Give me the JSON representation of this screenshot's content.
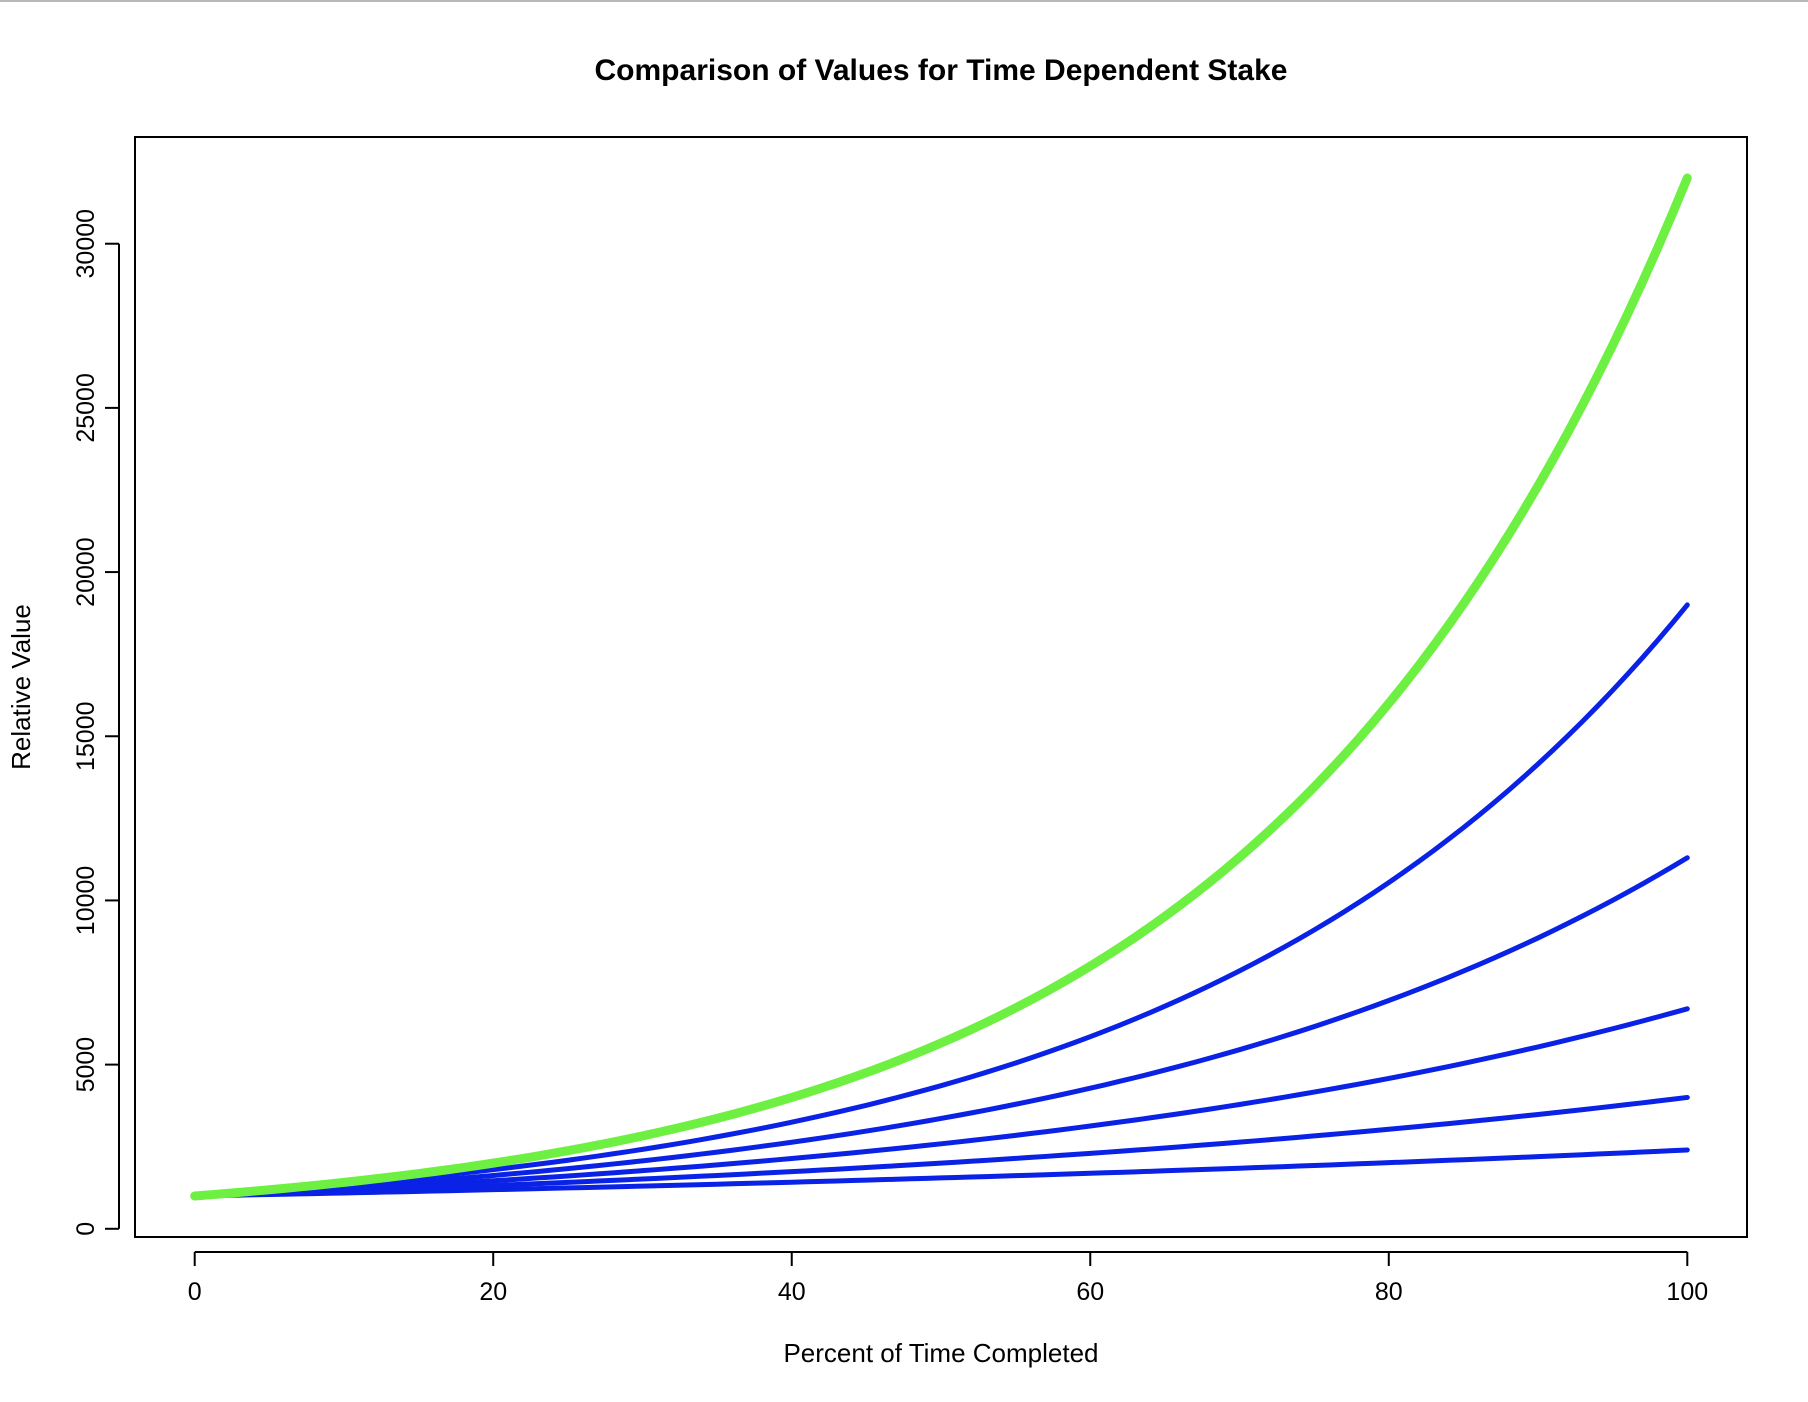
{
  "chart_data": {
    "type": "line",
    "title": "Comparison of Values for Time Dependent Stake",
    "xlabel": "Percent of Time Completed",
    "ylabel": "Relative Value",
    "xlim": [
      -4,
      104
    ],
    "ylim": [
      -250,
      33250
    ],
    "xticks": [
      0,
      20,
      40,
      60,
      80,
      100
    ],
    "yticks": [
      0,
      5000,
      10000,
      15000,
      20000,
      25000,
      30000
    ],
    "grid": false,
    "legend": "none",
    "colors": {
      "highlight": "#6ef042",
      "series": "#0a22e6"
    },
    "x": [
      0,
      10,
      20,
      30,
      40,
      50,
      60,
      70,
      80,
      90,
      100
    ],
    "series": [
      {
        "color": "#0a22e6",
        "values": [
          1000,
          1091,
          1191,
          1300,
          1419,
          1549,
          1690,
          1845,
          2014,
          2198,
          2400
        ]
      },
      {
        "color": "#0a22e6",
        "values": [
          1000,
          1149,
          1320,
          1516,
          1741,
          2000,
          2297,
          2639,
          3031,
          3482,
          4000
        ]
      },
      {
        "color": "#0a22e6",
        "values": [
          1000,
          1209,
          1463,
          1770,
          2141,
          2588,
          3130,
          3786,
          4579,
          5540,
          6700
        ]
      },
      {
        "color": "#0a22e6",
        "values": [
          1000,
          1274,
          1624,
          2069,
          2636,
          3360,
          4281,
          5455,
          6952,
          8858,
          11300
        ]
      },
      {
        "color": "#0a22e6",
        "values": [
          1000,
          1342,
          1802,
          2419,
          3247,
          4359,
          5851,
          7854,
          10544,
          14154,
          19000
        ]
      },
      {
        "color": "#6ef042",
        "values": [
          1000,
          1414,
          2000,
          2828,
          4000,
          5657,
          8000,
          11314,
          16000,
          22627,
          32000
        ]
      }
    ]
  }
}
